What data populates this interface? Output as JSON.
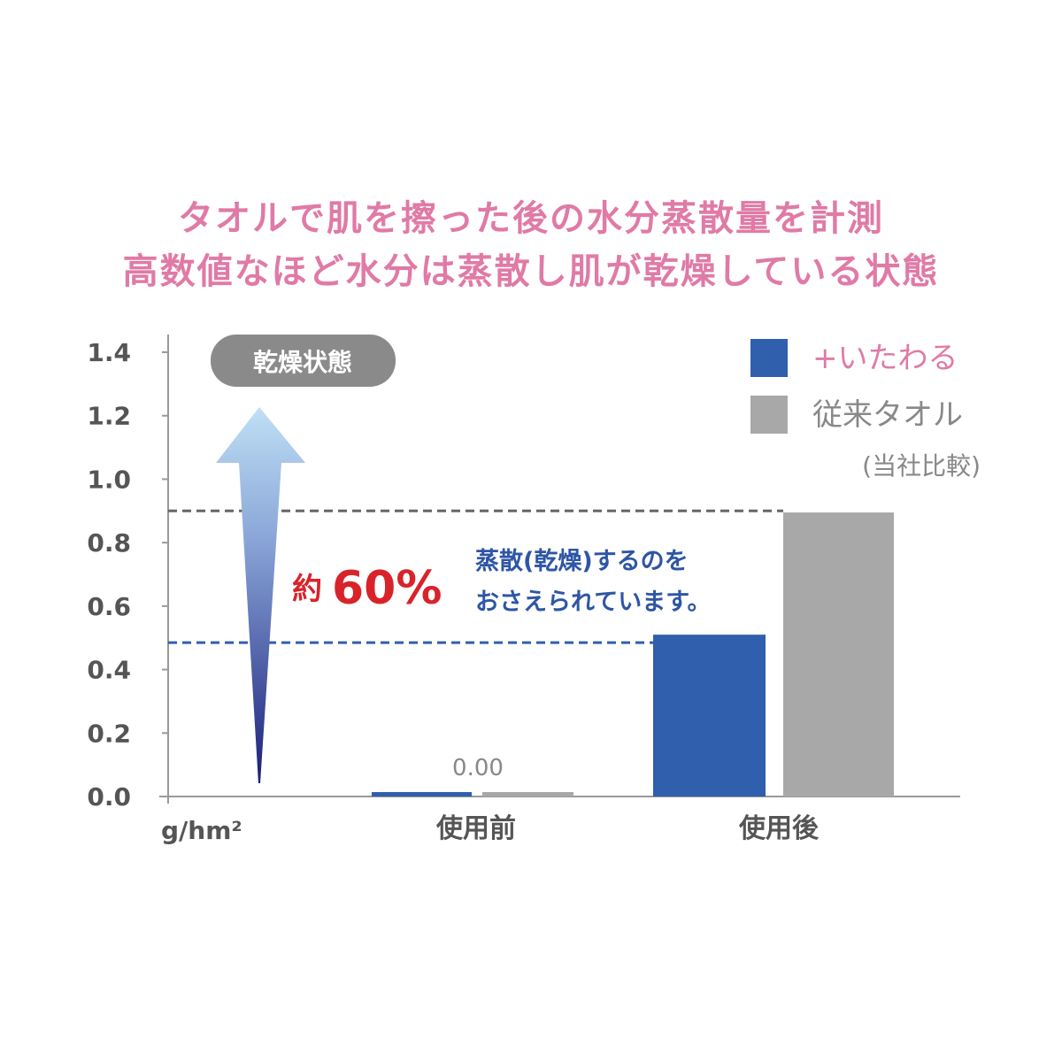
{
  "title_lines": [
    "タオルで肌を擦った後の水分蒸散量を計測",
    "高数値なほど水分は蒸散し肌が乾燥している状態"
  ],
  "chart_data": {
    "type": "bar",
    "categories": [
      "使用前",
      "使用後"
    ],
    "series": [
      {
        "name": "+いたわる",
        "values": [
          0.0,
          0.51
        ],
        "color": "#2f5fad"
      },
      {
        "name": "従来タオル",
        "values": [
          0.0,
          0.895
        ],
        "color": "#a8a8a8"
      }
    ],
    "ylim": [
      0,
      1.4
    ],
    "yticks": [
      "0.0",
      "0.2",
      "0.4",
      "0.6",
      "0.8",
      "1.0",
      "1.2",
      "1.4"
    ],
    "ylabel": "g/hm²",
    "data_labels": [
      {
        "category": "使用前",
        "text": "0.00"
      }
    ],
    "reference_lines": [
      {
        "value": 0.9,
        "color": "#666666",
        "style": "dashed"
      },
      {
        "value": 0.485,
        "color": "#2f5fad",
        "style": "dashed"
      }
    ],
    "legend": {
      "placement": "top-right",
      "note": "(当社比較)"
    },
    "annotations": {
      "arrow_label": "乾燥状態",
      "reduction_prefix": "約",
      "reduction_value": "60%",
      "reduction_text": [
        "蒸散(乾燥)するのを",
        "おさえられています。"
      ]
    },
    "grid": false
  }
}
